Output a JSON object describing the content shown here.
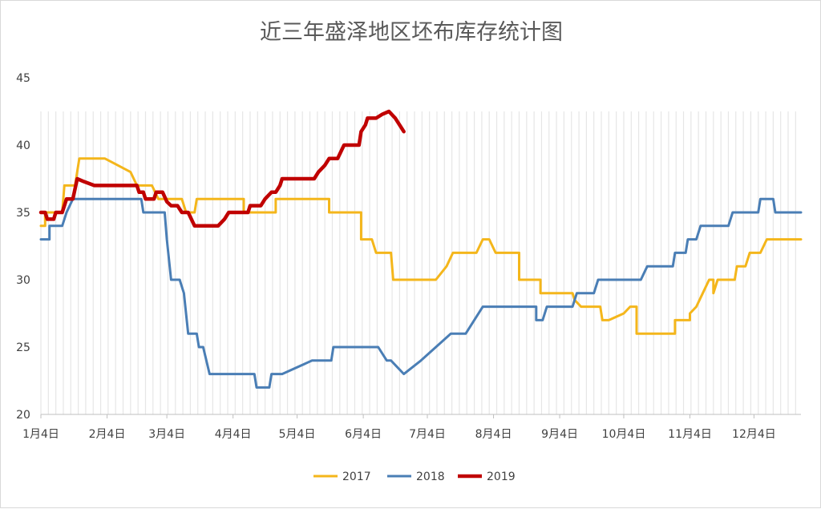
{
  "chart_data": {
    "type": "line",
    "title": "近三年盛泽地区坯布库存统计图",
    "xlabel": "",
    "ylabel": "",
    "ylim": [
      20,
      45
    ],
    "yticks": [
      20,
      25,
      30,
      35,
      40,
      45
    ],
    "x_domain_days": [
      0,
      356
    ],
    "x_tick_labels": [
      {
        "day": 0,
        "label": "1月4日"
      },
      {
        "day": 31,
        "label": "2月4日"
      },
      {
        "day": 59,
        "label": "3月4日"
      },
      {
        "day": 90,
        "label": "4月4日"
      },
      {
        "day": 120,
        "label": "5月4日"
      },
      {
        "day": 151,
        "label": "6月4日"
      },
      {
        "day": 181,
        "label": "7月4日"
      },
      {
        "day": 212,
        "label": "8月4日"
      },
      {
        "day": 243,
        "label": "9月4日"
      },
      {
        "day": 273,
        "label": "10月4日"
      },
      {
        "day": 304,
        "label": "11月4日"
      },
      {
        "day": 334,
        "label": "12月4日"
      }
    ],
    "grid": "vertical light gray bars behind data",
    "legend_position": "bottom",
    "series": [
      {
        "name": "2017",
        "color": "#f4b61b",
        "width": 3,
        "points": [
          [
            0,
            34
          ],
          [
            2,
            34
          ],
          [
            2,
            35
          ],
          [
            10,
            35
          ],
          [
            11,
            37
          ],
          [
            16,
            37
          ],
          [
            18,
            39
          ],
          [
            30,
            39
          ],
          [
            36,
            38.5
          ],
          [
            42,
            38
          ],
          [
            45,
            37
          ],
          [
            52,
            37
          ],
          [
            55,
            36
          ],
          [
            66,
            36
          ],
          [
            68,
            35
          ],
          [
            72,
            35
          ],
          [
            73,
            36
          ],
          [
            95,
            36
          ],
          [
            95,
            35
          ],
          [
            110,
            35
          ],
          [
            110,
            36
          ],
          [
            135,
            36
          ],
          [
            135,
            35
          ],
          [
            150,
            35
          ],
          [
            150,
            33
          ],
          [
            155,
            33
          ],
          [
            157,
            32
          ],
          [
            164,
            32
          ],
          [
            165,
            30
          ],
          [
            185,
            30
          ],
          [
            190,
            31
          ],
          [
            193,
            32
          ],
          [
            204,
            32
          ],
          [
            207,
            33
          ],
          [
            210,
            33
          ],
          [
            213,
            32
          ],
          [
            224,
            32
          ],
          [
            224,
            30
          ],
          [
            234,
            30
          ],
          [
            234,
            29
          ],
          [
            249,
            29
          ],
          [
            250,
            28.5
          ],
          [
            253,
            28
          ],
          [
            262,
            28
          ],
          [
            263,
            27
          ],
          [
            266,
            27
          ],
          [
            273,
            27.5
          ],
          [
            276,
            28
          ],
          [
            279,
            28
          ],
          [
            279,
            26
          ],
          [
            297,
            26
          ],
          [
            297,
            27
          ],
          [
            304,
            27
          ],
          [
            304,
            27.5
          ],
          [
            307,
            28
          ],
          [
            310,
            29
          ],
          [
            313,
            30
          ],
          [
            315,
            30
          ],
          [
            315,
            29
          ],
          [
            317,
            30
          ],
          [
            325,
            30
          ],
          [
            326,
            31
          ],
          [
            330,
            31
          ],
          [
            332,
            32
          ],
          [
            337,
            32
          ],
          [
            340,
            33
          ],
          [
            356,
            33
          ]
        ]
      },
      {
        "name": "2018",
        "color": "#4a7eb5",
        "width": 3,
        "points": [
          [
            0,
            33
          ],
          [
            4,
            33
          ],
          [
            4,
            34
          ],
          [
            10,
            34
          ],
          [
            12,
            35
          ],
          [
            15,
            36
          ],
          [
            17,
            36
          ],
          [
            47,
            36
          ],
          [
            48,
            35
          ],
          [
            58,
            35
          ],
          [
            59,
            33
          ],
          [
            61,
            30
          ],
          [
            65,
            30
          ],
          [
            67,
            29
          ],
          [
            69,
            26
          ],
          [
            73,
            26
          ],
          [
            74,
            25
          ],
          [
            76,
            25
          ],
          [
            79,
            23
          ],
          [
            100,
            23
          ],
          [
            101,
            22
          ],
          [
            107,
            22
          ],
          [
            108,
            23
          ],
          [
            113,
            23
          ],
          [
            127,
            24
          ],
          [
            136,
            24
          ],
          [
            137,
            25
          ],
          [
            158,
            25
          ],
          [
            162,
            24
          ],
          [
            164,
            24
          ],
          [
            170,
            23
          ],
          [
            178,
            24
          ],
          [
            192,
            26
          ],
          [
            199,
            26
          ],
          [
            207,
            28
          ],
          [
            232,
            28
          ],
          [
            232,
            27
          ],
          [
            235,
            27
          ],
          [
            237,
            28
          ],
          [
            249,
            28
          ],
          [
            251,
            29
          ],
          [
            259,
            29
          ],
          [
            261,
            30
          ],
          [
            281,
            30
          ],
          [
            284,
            31
          ],
          [
            296,
            31
          ],
          [
            297,
            32
          ],
          [
            302,
            32
          ],
          [
            303,
            33
          ],
          [
            307,
            33
          ],
          [
            309,
            34
          ],
          [
            322,
            34
          ],
          [
            324,
            35
          ],
          [
            336,
            35
          ],
          [
            337,
            36
          ],
          [
            343,
            36
          ],
          [
            344,
            35
          ],
          [
            356,
            35
          ]
        ]
      },
      {
        "name": "2019",
        "color": "#c00000",
        "width": 4.5,
        "points": [
          [
            0,
            35
          ],
          [
            2,
            35
          ],
          [
            3,
            34.5
          ],
          [
            6,
            34.5
          ],
          [
            7,
            35
          ],
          [
            10,
            35
          ],
          [
            12,
            36
          ],
          [
            15,
            36
          ],
          [
            17,
            37.5
          ],
          [
            20,
            37.3
          ],
          [
            25,
            37
          ],
          [
            45,
            37
          ],
          [
            46,
            36.5
          ],
          [
            48,
            36.5
          ],
          [
            49,
            36
          ],
          [
            53,
            36
          ],
          [
            54,
            36.5
          ],
          [
            57,
            36.5
          ],
          [
            59,
            35.8
          ],
          [
            61,
            35.5
          ],
          [
            64,
            35.5
          ],
          [
            66,
            35
          ],
          [
            69,
            35
          ],
          [
            72,
            34
          ],
          [
            83,
            34
          ],
          [
            86,
            34.5
          ],
          [
            88,
            35
          ],
          [
            97,
            35
          ],
          [
            98,
            35.5
          ],
          [
            103,
            35.5
          ],
          [
            105,
            36
          ],
          [
            108,
            36.5
          ],
          [
            110,
            36.5
          ],
          [
            112,
            37
          ],
          [
            113,
            37.5
          ],
          [
            128,
            37.5
          ],
          [
            130,
            38
          ],
          [
            133,
            38.5
          ],
          [
            135,
            39
          ],
          [
            139,
            39
          ],
          [
            142,
            40
          ],
          [
            149,
            40
          ],
          [
            150,
            41
          ],
          [
            152,
            41.5
          ],
          [
            153,
            42
          ],
          [
            157,
            42
          ],
          [
            160,
            42.3
          ],
          [
            163,
            42.5
          ],
          [
            166,
            42
          ],
          [
            170,
            41
          ]
        ]
      }
    ]
  }
}
